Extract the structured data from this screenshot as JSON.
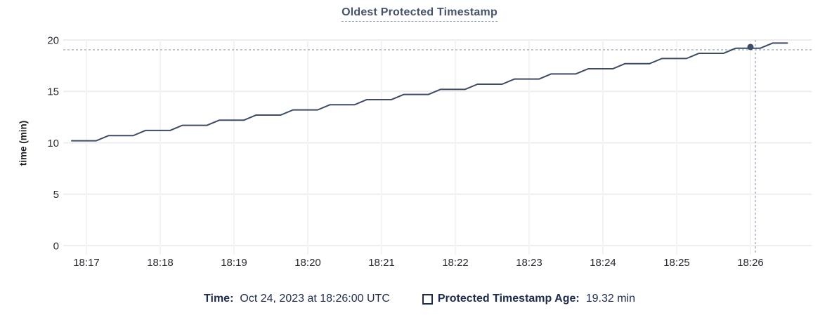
{
  "header": {
    "title": "Oldest Protected Timestamp"
  },
  "chart_data": {
    "type": "line",
    "title": "Oldest Protected Timestamp",
    "xlabel": "",
    "ylabel": "time (min)",
    "ylim": [
      0,
      20
    ],
    "y_ticks": [
      0,
      5,
      10,
      15,
      20
    ],
    "x_tick_labels": [
      "18:17",
      "18:18",
      "18:19",
      "18:20",
      "18:21",
      "18:22",
      "18:23",
      "18:24",
      "18:25",
      "18:26"
    ],
    "grid": true,
    "legend_position": "bottom",
    "series": [
      {
        "name": "Protected Timestamp Age",
        "unit": "min",
        "color": "#3d4c66",
        "style": "step-ramp",
        "points": [
          [
            "18:16:48",
            10.2
          ],
          [
            "18:17:08",
            10.2
          ],
          [
            "18:17:18",
            10.7
          ],
          [
            "18:17:38",
            10.7
          ],
          [
            "18:17:48",
            11.2
          ],
          [
            "18:18:08",
            11.2
          ],
          [
            "18:18:18",
            11.7
          ],
          [
            "18:18:38",
            11.7
          ],
          [
            "18:18:48",
            12.2
          ],
          [
            "18:19:08",
            12.2
          ],
          [
            "18:19:18",
            12.7
          ],
          [
            "18:19:38",
            12.7
          ],
          [
            "18:19:48",
            13.2
          ],
          [
            "18:20:08",
            13.2
          ],
          [
            "18:20:18",
            13.7
          ],
          [
            "18:20:38",
            13.7
          ],
          [
            "18:20:48",
            14.2
          ],
          [
            "18:21:08",
            14.2
          ],
          [
            "18:21:18",
            14.7
          ],
          [
            "18:21:38",
            14.7
          ],
          [
            "18:21:48",
            15.2
          ],
          [
            "18:22:08",
            15.2
          ],
          [
            "18:22:18",
            15.7
          ],
          [
            "18:22:38",
            15.7
          ],
          [
            "18:22:48",
            16.2
          ],
          [
            "18:23:08",
            16.2
          ],
          [
            "18:23:18",
            16.7
          ],
          [
            "18:23:38",
            16.7
          ],
          [
            "18:23:48",
            17.2
          ],
          [
            "18:24:08",
            17.2
          ],
          [
            "18:24:18",
            17.7
          ],
          [
            "18:24:38",
            17.7
          ],
          [
            "18:24:48",
            18.2
          ],
          [
            "18:25:08",
            18.2
          ],
          [
            "18:25:18",
            18.7
          ],
          [
            "18:25:38",
            18.7
          ],
          [
            "18:25:48",
            19.2
          ],
          [
            "18:26:08",
            19.2
          ],
          [
            "18:26:18",
            19.7
          ],
          [
            "18:26:30",
            19.7
          ]
        ]
      }
    ],
    "marker": {
      "time": "18:26:00",
      "value": 19.32,
      "label": "19.32 min"
    }
  },
  "tooltip": {
    "time_label": "Time:",
    "time_value": "Oct 24, 2023 at 18:26:00 UTC",
    "series_swatch": "hollow-square",
    "series_label": "Protected Timestamp Age:",
    "series_value": "19.32 min"
  },
  "colors": {
    "series_line": "#3d4c66",
    "title_text": "#46526b",
    "legend_text": "#1e2c4e",
    "axis_text": "#272b31",
    "crosshair": "#9fb1c2",
    "gridline": "#ededed"
  }
}
